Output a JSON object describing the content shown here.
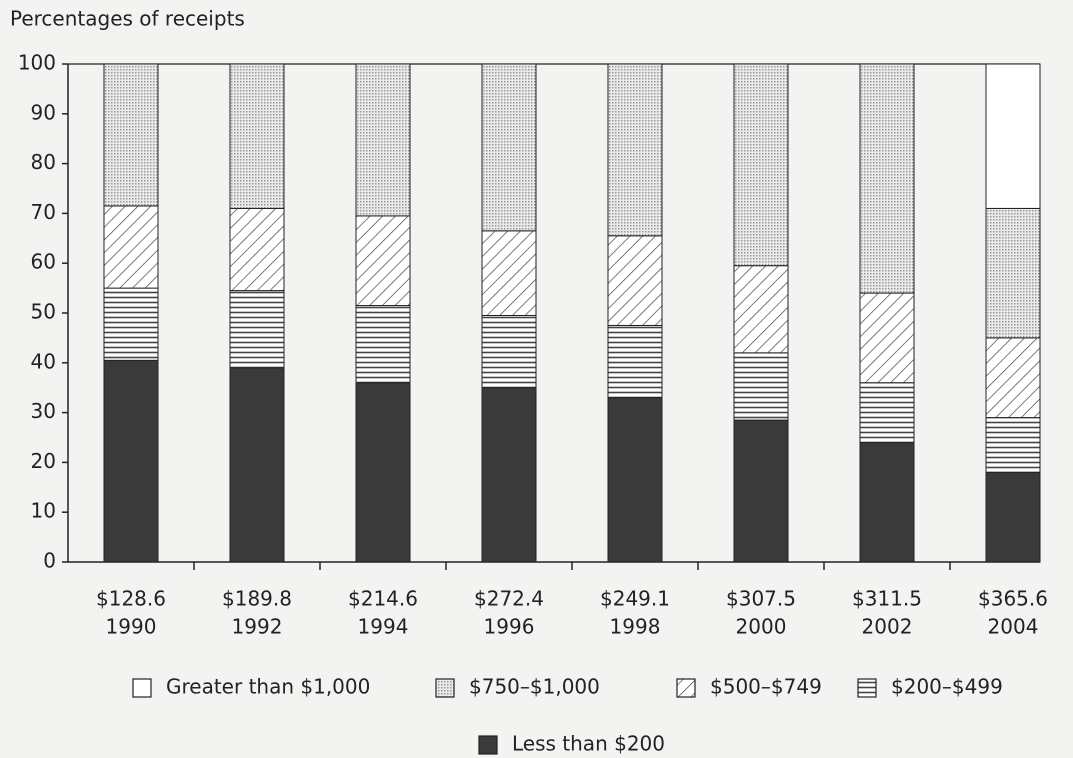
{
  "chart_data": {
    "type": "stacked_bar",
    "y_label": "Percentages of receipts",
    "categories": [
      [
        "$128.6",
        "1990"
      ],
      [
        "$189.8",
        "1992"
      ],
      [
        "$214.6",
        "1994"
      ],
      [
        "$272.4",
        "1996"
      ],
      [
        "$249.1",
        "1998"
      ],
      [
        "$307.5",
        "2000"
      ],
      [
        "$311.5",
        "2002"
      ],
      [
        "$365.6",
        "2004"
      ]
    ],
    "series": [
      {
        "name": "Less than $200",
        "color": "#3a3a3a",
        "pattern": "solid",
        "values": [
          40.5,
          39,
          36,
          35,
          33,
          28.5,
          24,
          18
        ]
      },
      {
        "name": "$200–$499",
        "color": "#444444",
        "pattern": "hlines",
        "values": [
          14.5,
          15.5,
          15.5,
          14.5,
          14.5,
          13.5,
          12,
          11
        ]
      },
      {
        "name": "$500–$749",
        "color": "#444444",
        "pattern": "hatch",
        "values": [
          16.5,
          16.5,
          18,
          17,
          18,
          17.5,
          18,
          16
        ]
      },
      {
        "name": "$750–$1,000",
        "color": "#9a9a9a",
        "pattern": "dots",
        "values": [
          28.5,
          29,
          30.5,
          33.5,
          34.5,
          40.5,
          46,
          26
        ]
      },
      {
        "name": "Greater than $1,000",
        "color": "#ffffff",
        "pattern": "none",
        "values": [
          0,
          0,
          0,
          0,
          0,
          0,
          0,
          29
        ]
      }
    ],
    "legend_order": [
      4,
      3,
      2,
      1,
      0
    ],
    "ylim": [
      0,
      100
    ],
    "yticks": [
      0,
      10,
      20,
      30,
      40,
      50,
      60,
      70,
      80,
      90,
      100
    ],
    "grid": false
  }
}
